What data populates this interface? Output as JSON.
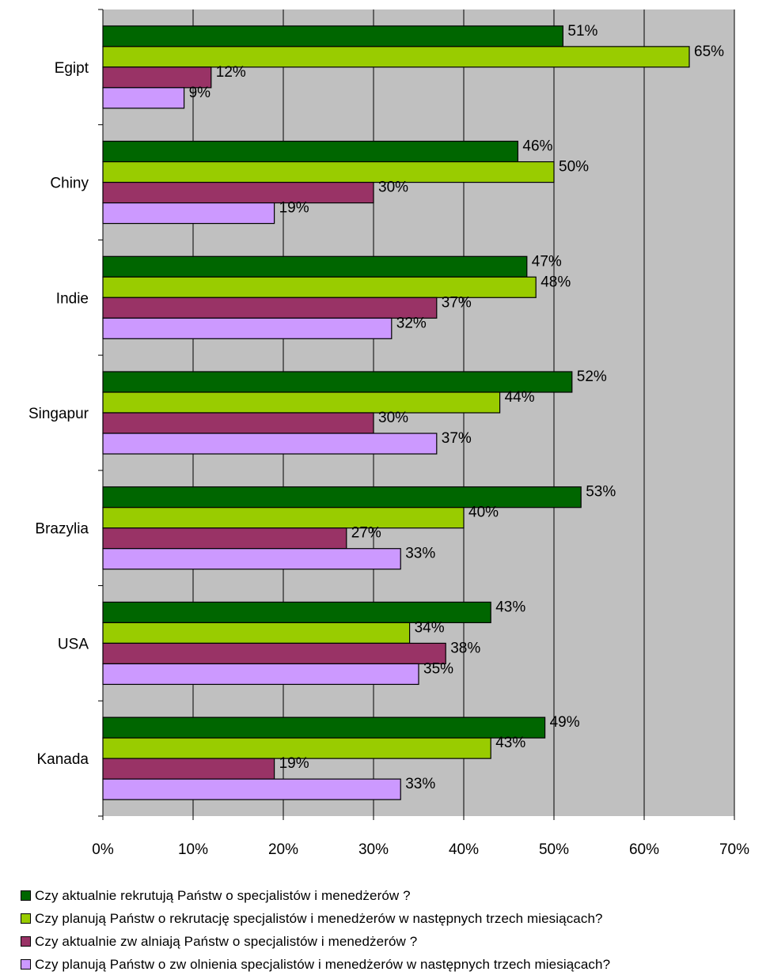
{
  "chart_data": {
    "type": "bar",
    "orientation": "horizontal",
    "categories": [
      "Egipt",
      "Chiny",
      "Indie",
      "Singapur",
      "Brazylia",
      "USA",
      "Kanada"
    ],
    "series": [
      {
        "name": "Czy aktualnie rekrutują Państw o specjalistów  i menedżerów ?",
        "color": "#006600",
        "values": [
          51,
          46,
          47,
          52,
          53,
          43,
          49
        ]
      },
      {
        "name": "Czy planują Państw o rekrutację specjalistów  i menedżerów  w  następnych trzech miesiącach?",
        "color": "#99CC00",
        "values": [
          65,
          50,
          48,
          44,
          40,
          34,
          43
        ]
      },
      {
        "name": "Czy aktualnie zw alniają Państw o specjalistów  i menedżerów ?",
        "color": "#993366",
        "values": [
          12,
          30,
          37,
          30,
          27,
          38,
          19
        ]
      },
      {
        "name": "Czy planują Państw o zw olnienia specjalistów  i menedżerów  w  następnych trzech miesiącach?",
        "color": "#CC99FF",
        "values": [
          9,
          19,
          32,
          37,
          33,
          35,
          33
        ]
      }
    ],
    "x_ticks": [
      "0%",
      "10%",
      "20%",
      "30%",
      "40%",
      "50%",
      "60%",
      "70%"
    ],
    "xlim": [
      0,
      70
    ],
    "value_suffix": "%",
    "grid": true,
    "plot_background": "#C0C0C0",
    "legend_position": "bottom"
  }
}
